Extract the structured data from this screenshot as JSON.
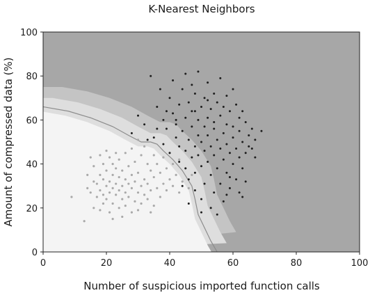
{
  "chart_data": {
    "type": "scatter",
    "title": "K-Nearest Neighbors",
    "xlabel": "Number of suspicious imported function calls",
    "ylabel": "Amount of compressed data (%)",
    "xlim": [
      0,
      100
    ],
    "ylim": [
      0,
      100
    ],
    "xticks": [
      "0",
      "20",
      "40",
      "60",
      "80",
      "100"
    ],
    "yticks": [
      "0",
      "20",
      "40",
      "60",
      "80",
      "100"
    ],
    "grid": false,
    "legend": "none",
    "colors": {
      "region_high": "#a7a7a7",
      "region_mid_dark": "#c4c4c4",
      "region_mid_light": "#dedede",
      "region_low": "#f4f4f4",
      "series_dark": "#1e1e1e",
      "series_light": "#a9a9a9",
      "boundary": "#8c8c8c"
    },
    "decision_boundary": [
      [
        0,
        66
      ],
      [
        8,
        64
      ],
      [
        15,
        61
      ],
      [
        22,
        57
      ],
      [
        27,
        53
      ],
      [
        31,
        50
      ],
      [
        34,
        50
      ],
      [
        36,
        49
      ],
      [
        38,
        46
      ],
      [
        41,
        42
      ],
      [
        44,
        37
      ],
      [
        47,
        30
      ],
      [
        48,
        24
      ],
      [
        49,
        17
      ],
      [
        51,
        11
      ],
      [
        53,
        5
      ],
      [
        55,
        0
      ]
    ],
    "series": [
      {
        "values": [
          [
            9,
            25
          ],
          [
            13,
            14
          ],
          [
            14,
            29
          ],
          [
            14,
            35
          ],
          [
            15,
            27
          ],
          [
            16,
            20
          ],
          [
            16,
            32
          ],
          [
            16,
            39
          ],
          [
            17,
            25
          ],
          [
            17,
            31
          ],
          [
            18,
            19
          ],
          [
            18,
            28
          ],
          [
            18,
            35
          ],
          [
            19,
            22
          ],
          [
            19,
            26
          ],
          [
            19,
            33
          ],
          [
            19,
            40
          ],
          [
            20,
            24
          ],
          [
            20,
            30
          ],
          [
            20,
            37
          ],
          [
            21,
            18
          ],
          [
            21,
            27
          ],
          [
            21,
            32
          ],
          [
            21,
            43
          ],
          [
            22,
            22
          ],
          [
            22,
            29
          ],
          [
            22,
            35
          ],
          [
            22,
            40
          ],
          [
            23,
            26
          ],
          [
            23,
            31
          ],
          [
            23,
            38
          ],
          [
            24,
            20
          ],
          [
            24,
            28
          ],
          [
            24,
            34
          ],
          [
            24,
            42
          ],
          [
            25,
            24
          ],
          [
            25,
            30
          ],
          [
            25,
            37
          ],
          [
            26,
            21
          ],
          [
            26,
            27
          ],
          [
            26,
            33
          ],
          [
            26,
            45
          ],
          [
            27,
            25
          ],
          [
            27,
            31
          ],
          [
            27,
            39
          ],
          [
            28,
            18
          ],
          [
            28,
            29
          ],
          [
            28,
            35
          ],
          [
            29,
            23
          ],
          [
            29,
            32
          ],
          [
            29,
            41
          ],
          [
            30,
            27
          ],
          [
            30,
            36
          ],
          [
            31,
            22
          ],
          [
            31,
            30
          ],
          [
            31,
            44
          ],
          [
            32,
            26
          ],
          [
            32,
            33
          ],
          [
            32,
            48
          ],
          [
            33,
            24
          ],
          [
            33,
            31
          ],
          [
            33,
            40
          ],
          [
            34,
            28
          ],
          [
            34,
            37
          ],
          [
            35,
            21
          ],
          [
            35,
            34
          ],
          [
            35,
            44
          ],
          [
            36,
            29
          ],
          [
            36,
            40
          ],
          [
            37,
            25
          ],
          [
            37,
            36
          ],
          [
            38,
            31
          ],
          [
            38,
            43
          ],
          [
            39,
            28
          ],
          [
            39,
            38
          ],
          [
            40,
            33
          ],
          [
            40,
            45
          ],
          [
            41,
            30
          ],
          [
            41,
            40
          ],
          [
            42,
            35
          ],
          [
            43,
            27
          ],
          [
            43,
            42
          ],
          [
            44,
            32
          ],
          [
            45,
            38
          ],
          [
            46,
            29
          ],
          [
            47,
            35
          ],
          [
            20,
            46
          ],
          [
            23,
            45
          ],
          [
            28,
            47
          ],
          [
            30,
            51
          ],
          [
            22,
            15
          ],
          [
            25,
            16
          ],
          [
            30,
            19
          ],
          [
            34,
            18
          ],
          [
            18,
            44
          ],
          [
            15,
            43
          ]
        ]
      },
      {
        "values": [
          [
            28,
            54
          ],
          [
            30,
            62
          ],
          [
            32,
            58
          ],
          [
            34,
            80
          ],
          [
            35,
            52
          ],
          [
            36,
            66
          ],
          [
            37,
            74
          ],
          [
            38,
            49
          ],
          [
            38,
            60
          ],
          [
            39,
            56
          ],
          [
            40,
            70
          ],
          [
            40,
            45
          ],
          [
            41,
            63
          ],
          [
            41,
            78
          ],
          [
            42,
            52
          ],
          [
            42,
            58
          ],
          [
            43,
            67
          ],
          [
            43,
            41
          ],
          [
            43,
            48
          ],
          [
            44,
            55
          ],
          [
            44,
            74
          ],
          [
            45,
            38
          ],
          [
            45,
            46
          ],
          [
            45,
            61
          ],
          [
            45,
            81
          ],
          [
            46,
            51
          ],
          [
            46,
            68
          ],
          [
            46,
            33
          ],
          [
            47,
            43
          ],
          [
            47,
            57
          ],
          [
            47,
            64
          ],
          [
            48,
            48
          ],
          [
            48,
            72
          ],
          [
            48,
            36
          ],
          [
            48,
            28
          ],
          [
            49,
            53
          ],
          [
            49,
            60
          ],
          [
            49,
            44
          ],
          [
            49,
            82
          ],
          [
            50,
            39
          ],
          [
            50,
            66
          ],
          [
            50,
            50
          ],
          [
            50,
            24
          ],
          [
            51,
            57
          ],
          [
            51,
            46
          ],
          [
            51,
            70
          ],
          [
            51,
            31
          ],
          [
            52,
            61
          ],
          [
            52,
            41
          ],
          [
            52,
            53
          ],
          [
            52,
            77
          ],
          [
            53,
            48
          ],
          [
            53,
            65
          ],
          [
            53,
            35
          ],
          [
            53,
            20
          ],
          [
            54,
            56
          ],
          [
            54,
            44
          ],
          [
            54,
            59
          ],
          [
            54,
            27
          ],
          [
            55,
            51
          ],
          [
            55,
            68
          ],
          [
            55,
            38
          ],
          [
            55,
            17
          ],
          [
            56,
            47
          ],
          [
            56,
            62
          ],
          [
            56,
            79
          ],
          [
            56,
            31
          ],
          [
            57,
            54
          ],
          [
            57,
            42
          ],
          [
            57,
            23
          ],
          [
            58,
            58
          ],
          [
            58,
            49
          ],
          [
            58,
            71
          ],
          [
            58,
            36
          ],
          [
            59,
            45
          ],
          [
            59,
            64
          ],
          [
            59,
            29
          ],
          [
            60,
            52
          ],
          [
            60,
            40
          ],
          [
            60,
            57
          ],
          [
            61,
            47
          ],
          [
            61,
            67
          ],
          [
            61,
            33
          ],
          [
            62,
            55
          ],
          [
            62,
            43
          ],
          [
            62,
            61
          ],
          [
            63,
            50
          ],
          [
            63,
            38
          ],
          [
            64,
            59
          ],
          [
            64,
            45
          ],
          [
            65,
            53
          ],
          [
            65,
            48
          ],
          [
            66,
            56
          ],
          [
            67,
            43
          ],
          [
            67,
            51
          ],
          [
            69,
            55
          ],
          [
            44,
            30
          ],
          [
            46,
            22
          ],
          [
            50,
            18
          ],
          [
            58,
            26
          ],
          [
            62,
            27
          ],
          [
            60,
            74
          ],
          [
            52,
            69
          ],
          [
            48,
            64
          ],
          [
            42,
            60
          ],
          [
            39,
            64
          ],
          [
            36,
            56
          ],
          [
            33,
            51
          ],
          [
            47,
            76
          ],
          [
            54,
            72
          ],
          [
            57,
            66
          ],
          [
            63,
            64
          ],
          [
            66,
            47
          ],
          [
            64,
            32
          ],
          [
            63,
            25
          ],
          [
            59,
            34
          ]
        ]
      }
    ]
  }
}
